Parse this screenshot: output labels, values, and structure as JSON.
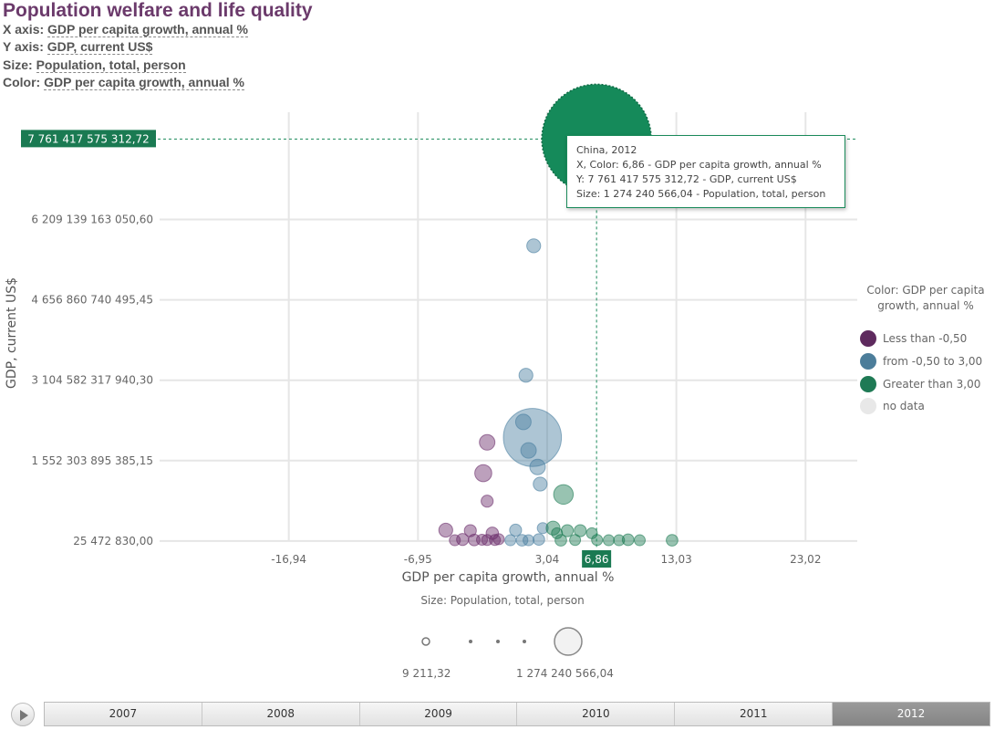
{
  "header": {
    "title": "Population welfare and life quality",
    "x_key": "X axis:",
    "x_val": "GDP per capita growth, annual %",
    "y_key": "Y axis:",
    "y_val": "GDP, current US$",
    "size_key": "Size:",
    "size_val": "Population, total, person",
    "color_key": "Color:",
    "color_val": "GDP per capita growth, annual %"
  },
  "chart_data": {
    "type": "scatter",
    "xlabel": "GDP per capita growth, annual %",
    "ylabel": "GDP, current US$",
    "xlim": [
      -26.93,
      27.02
    ],
    "ylim": [
      -1552278422.0,
      8278836797000.0
    ],
    "x_ticks": [
      -16.94,
      -6.95,
      3.04,
      13.03,
      23.02
    ],
    "x_tick_labels": [
      "-16,94",
      "-6,95",
      "3,04",
      "13,03",
      "23,02"
    ],
    "y_ticks": [
      25472830.0,
      1552303895385.15,
      3104582317940.3,
      4656860740495.45,
      6209139163050.6
    ],
    "y_tick_labels": [
      "25 472 830,00",
      "1 552 303 895 385,15",
      "3 104 582 317 940,30",
      "4 656 860 740 495,45",
      "6 209 139 163 050,60"
    ],
    "grid": true,
    "highlight": {
      "name": "China, 2012",
      "x": 6.86,
      "y": 7761417575312.72,
      "size": 1274240566.04,
      "x_label": "6,86",
      "y_label": "7 761 417 575 312,72",
      "tooltip": [
        "China, 2012",
        "X, Color: 6,86 - GDP per capita growth, annual %",
        "Y: 7 761 417 575 312,72 - GDP, current US$",
        "Size: 1 274 240 566,04 - Population, total, person"
      ]
    },
    "series": [
      {
        "name": "Less than -0,50",
        "color": "#6b2d6b",
        "points": [
          {
            "x": -4.8,
            "y": 210000000000,
            "s": 20000000
          },
          {
            "x": -1.6,
            "y": 1905000000000,
            "s": 25000000
          },
          {
            "x": -1.9,
            "y": 1310000000000,
            "s": 30000000
          },
          {
            "x": -1.6,
            "y": 770000000000,
            "s": 15000000
          },
          {
            "x": -2.9,
            "y": 200000000000,
            "s": 15000000
          },
          {
            "x": -3.5,
            "y": 30000000000,
            "s": 15000000
          },
          {
            "x": -4.1,
            "y": 15000000000,
            "s": 12000000
          },
          {
            "x": -2.6,
            "y": 20000000000,
            "s": 14000000
          },
          {
            "x": -2.0,
            "y": 25000000000,
            "s": 12000000
          },
          {
            "x": -1.2,
            "y": 150000000000,
            "s": 16000000
          },
          {
            "x": -1.0,
            "y": 20000000000,
            "s": 12000000
          },
          {
            "x": -0.7,
            "y": 35000000000,
            "s": 10000000
          },
          {
            "x": -1.6,
            "y": 20000000000,
            "s": 8000000
          }
        ]
      },
      {
        "name": "from -0,50 to 3,00",
        "color": "#4a7fa0",
        "points": [
          {
            "x": 2.0,
            "y": 5700000000000,
            "s": 20000000
          },
          {
            "x": 1.4,
            "y": 3200000000000,
            "s": 20000000
          },
          {
            "x": 1.2,
            "y": 2300000000000,
            "s": 25000000
          },
          {
            "x": 1.9,
            "y": 2000000000000,
            "s": 350000000
          },
          {
            "x": 1.6,
            "y": 1750000000000,
            "s": 25000000
          },
          {
            "x": 2.3,
            "y": 1430000000000,
            "s": 25000000
          },
          {
            "x": 2.5,
            "y": 1100000000000,
            "s": 20000000
          },
          {
            "x": 0.6,
            "y": 210000000000,
            "s": 15000000
          },
          {
            "x": 1.1,
            "y": 15000000000,
            "s": 14000000
          },
          {
            "x": 1.6,
            "y": 15000000000,
            "s": 12000000
          },
          {
            "x": 2.4,
            "y": 30000000000,
            "s": 14000000
          },
          {
            "x": 0.2,
            "y": 15000000000,
            "s": 10000000
          },
          {
            "x": 2.7,
            "y": 250000000000,
            "s": 12000000
          }
        ]
      },
      {
        "name": "Greater than 3,00",
        "color": "#1a7a52",
        "points": [
          {
            "x": 4.3,
            "y": 900000000000,
            "s": 40000000
          },
          {
            "x": 3.5,
            "y": 250000000000,
            "s": 20000000
          },
          {
            "x": 4.6,
            "y": 200000000000,
            "s": 15000000
          },
          {
            "x": 5.6,
            "y": 200000000000,
            "s": 15000000
          },
          {
            "x": 6.5,
            "y": 150000000000,
            "s": 12000000
          },
          {
            "x": 7.8,
            "y": 15000000000,
            "s": 12000000
          },
          {
            "x": 8.6,
            "y": 15000000000,
            "s": 12000000
          },
          {
            "x": 9.3,
            "y": 25000000000,
            "s": 14000000
          },
          {
            "x": 10.2,
            "y": 15000000000,
            "s": 12000000
          },
          {
            "x": 12.7,
            "y": 15000000000,
            "s": 14000000
          },
          {
            "x": 4.1,
            "y": 15000000000,
            "s": 14000000
          },
          {
            "x": 5.2,
            "y": 20000000000,
            "s": 12000000
          },
          {
            "x": 3.8,
            "y": 150000000000,
            "s": 12000000
          },
          {
            "x": 6.9,
            "y": 20000000000,
            "s": 12000000
          },
          {
            "x": 6.86,
            "y": 7761417575312.72,
            "s": 1274240566.04
          }
        ]
      }
    ]
  },
  "legend": {
    "title": "Color: GDP per capita growth, annual %",
    "items": [
      {
        "label": "Less than -0,50",
        "color": "#5e2a5e"
      },
      {
        "label": "from -0,50 to 3,00",
        "color": "#4c7d9a"
      },
      {
        "label": "Greater than 3,00",
        "color": "#1f7a55"
      },
      {
        "label": "no data",
        "color": "#e8e8e8"
      }
    ]
  },
  "size_legend": {
    "title": "Size: Population, total, person",
    "min_label": "9 211,32",
    "max_label": "1 274 240 566,04"
  },
  "timeline": {
    "years": [
      "2007",
      "2008",
      "2009",
      "2010",
      "2011",
      "2012"
    ],
    "active": "2012"
  }
}
